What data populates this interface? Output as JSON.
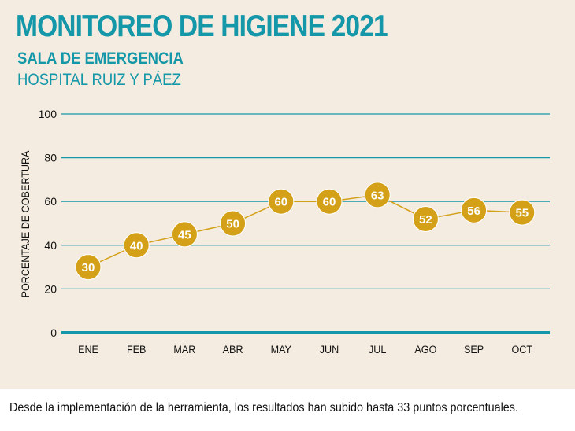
{
  "header": {
    "title": "MONITOREO DE HIGIENE 2021",
    "subtitle": "SALA DE EMERGENCIA",
    "hospital": "HOSPITAL RUIZ Y PÁEZ"
  },
  "caption": "Desde la implementación de la herramienta, los resultados han subido hasta 33 puntos porcentuales.",
  "colors": {
    "accent": "#1497a8",
    "marker": "#d4a017",
    "background": "#f4ece0"
  },
  "chart_data": {
    "type": "line",
    "categories": [
      "ENE",
      "FEB",
      "MAR",
      "ABR",
      "MAY",
      "JUN",
      "JUL",
      "AGO",
      "SEP",
      "OCT"
    ],
    "values": [
      30,
      40,
      45,
      50,
      60,
      60,
      63,
      52,
      56,
      55
    ],
    "ylabel": "PORCENTAJE DE COBERTURA",
    "ylim": [
      0,
      100
    ],
    "yticks": [
      0,
      20,
      40,
      60,
      80,
      100
    ],
    "grid": true,
    "data_labels": true
  }
}
